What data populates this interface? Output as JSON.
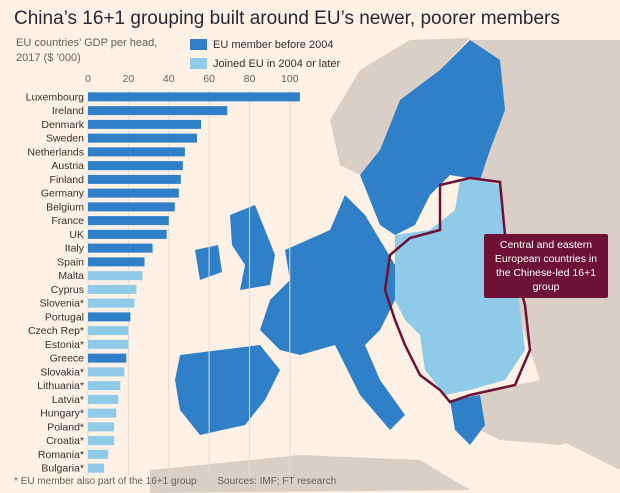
{
  "header": {
    "title": "China’s 16+1 grouping built around EU’s newer, poorer members",
    "subtitle": "EU countries’ GDP per head, 2017 ($ ’000)"
  },
  "legend": {
    "items": [
      {
        "label": "EU member before 2004",
        "color": "#2f7fc9"
      },
      {
        "label": "Joined EU in 2004 or later",
        "color": "#8fcbe8"
      }
    ]
  },
  "map": {
    "callout": "Central and eastern European countries in the Chinese-led 16+1 group",
    "colors": {
      "sea": "#fff1e5",
      "land": "#d9cfc6",
      "old_eu": "#2f7fc9",
      "new_eu": "#8fcbe8",
      "border": "#6d1234"
    }
  },
  "footer": {
    "note": "* EU member also part of the 16+1 group",
    "sources": "Sources: IMF; FT research"
  },
  "chart_data": {
    "type": "bar",
    "orientation": "horizontal",
    "title": "China’s 16+1 grouping built around EU’s newer, poorer members",
    "subtitle": "EU countries’ GDP per head, 2017 ($ ’000)",
    "xlim": [
      0,
      110
    ],
    "xticks": [
      0,
      20,
      40,
      60,
      80,
      100
    ],
    "categories": [
      "Luxembourg",
      "Ireland",
      "Denmark",
      "Sweden",
      "Netherlands",
      "Austria",
      "Finland",
      "Germany",
      "Belgium",
      "France",
      "UK",
      "Italy",
      "Spain",
      "Malta",
      "Cyprus",
      "Slovenia*",
      "Portugal",
      "Czech Rep*",
      "Estonia*",
      "Greece",
      "Slovakia*",
      "Lithuania*",
      "Latvia*",
      "Hungary*",
      "Poland*",
      "Croatia*",
      "Romania*",
      "Bulgaria*"
    ],
    "values": [
      105,
      69,
      56,
      54,
      48,
      47,
      46,
      45,
      43,
      40,
      39,
      32,
      28,
      27,
      24,
      23,
      21,
      20,
      20,
      19,
      18,
      16,
      15,
      14,
      13,
      13,
      10,
      8
    ],
    "group": [
      "old",
      "old",
      "old",
      "old",
      "old",
      "old",
      "old",
      "old",
      "old",
      "old",
      "old",
      "old",
      "old",
      "new",
      "new",
      "new",
      "old",
      "new",
      "new",
      "old",
      "new",
      "new",
      "new",
      "new",
      "new",
      "new",
      "new",
      "new"
    ],
    "series": [
      {
        "name": "EU member before 2004",
        "color": "#2f7fc9"
      },
      {
        "name": "Joined EU in 2004 or later",
        "color": "#8fcbe8"
      }
    ],
    "grid": true,
    "legend_position": "top"
  }
}
